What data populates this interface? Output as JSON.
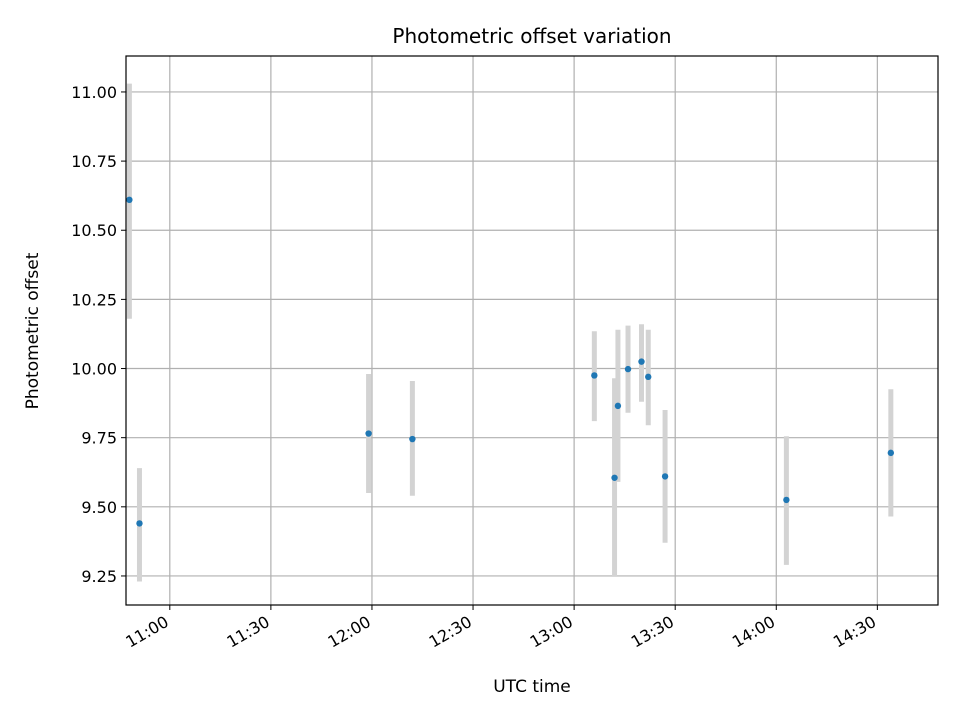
{
  "chart_data": {
    "type": "scatter",
    "title": "Photometric offset variation",
    "xlabel": "UTC time",
    "ylabel": "Photometric offset",
    "x_tick_labels": [
      "11:00",
      "11:30",
      "12:00",
      "12:30",
      "13:00",
      "13:30",
      "14:00",
      "14:30"
    ],
    "y_tick_labels": [
      "9.25",
      "9.50",
      "9.75",
      "10.00",
      "10.25",
      "10.50",
      "10.75",
      "11.00"
    ],
    "y_ticks": [
      9.25,
      9.5,
      9.75,
      10.0,
      10.25,
      10.5,
      10.75,
      11.0
    ],
    "xlim": [
      "10:47",
      "14:48"
    ],
    "ylim": [
      9.145,
      11.13
    ],
    "grid": true,
    "marker_color": "#1f77b4",
    "errorbar_color": "#d3d3d3",
    "points": [
      {
        "x": "10:48",
        "y": 10.61,
        "err_low": 10.18,
        "err_high": 11.03
      },
      {
        "x": "10:51",
        "y": 9.44,
        "err_low": 9.23,
        "err_high": 9.64
      },
      {
        "x": "11:59",
        "y": 9.765,
        "err_low": 9.55,
        "err_high": 9.98
      },
      {
        "x": "12:12",
        "y": 9.745,
        "err_low": 9.54,
        "err_high": 9.955
      },
      {
        "x": "13:06",
        "y": 9.975,
        "err_low": 9.81,
        "err_high": 10.135
      },
      {
        "x": "13:12",
        "y": 9.605,
        "err_low": 9.25,
        "err_high": 9.965
      },
      {
        "x": "13:13",
        "y": 9.865,
        "err_low": 9.59,
        "err_high": 10.14
      },
      {
        "x": "13:16",
        "y": 9.998,
        "err_low": 9.84,
        "err_high": 10.155
      },
      {
        "x": "13:20",
        "y": 10.025,
        "err_low": 9.88,
        "err_high": 10.16
      },
      {
        "x": "13:22",
        "y": 9.97,
        "err_low": 9.795,
        "err_high": 10.14
      },
      {
        "x": "13:27",
        "y": 9.61,
        "err_low": 9.37,
        "err_high": 9.85
      },
      {
        "x": "14:03",
        "y": 9.525,
        "err_low": 9.29,
        "err_high": 9.755
      },
      {
        "x": "14:34",
        "y": 9.695,
        "err_low": 9.465,
        "err_high": 9.925
      }
    ]
  }
}
